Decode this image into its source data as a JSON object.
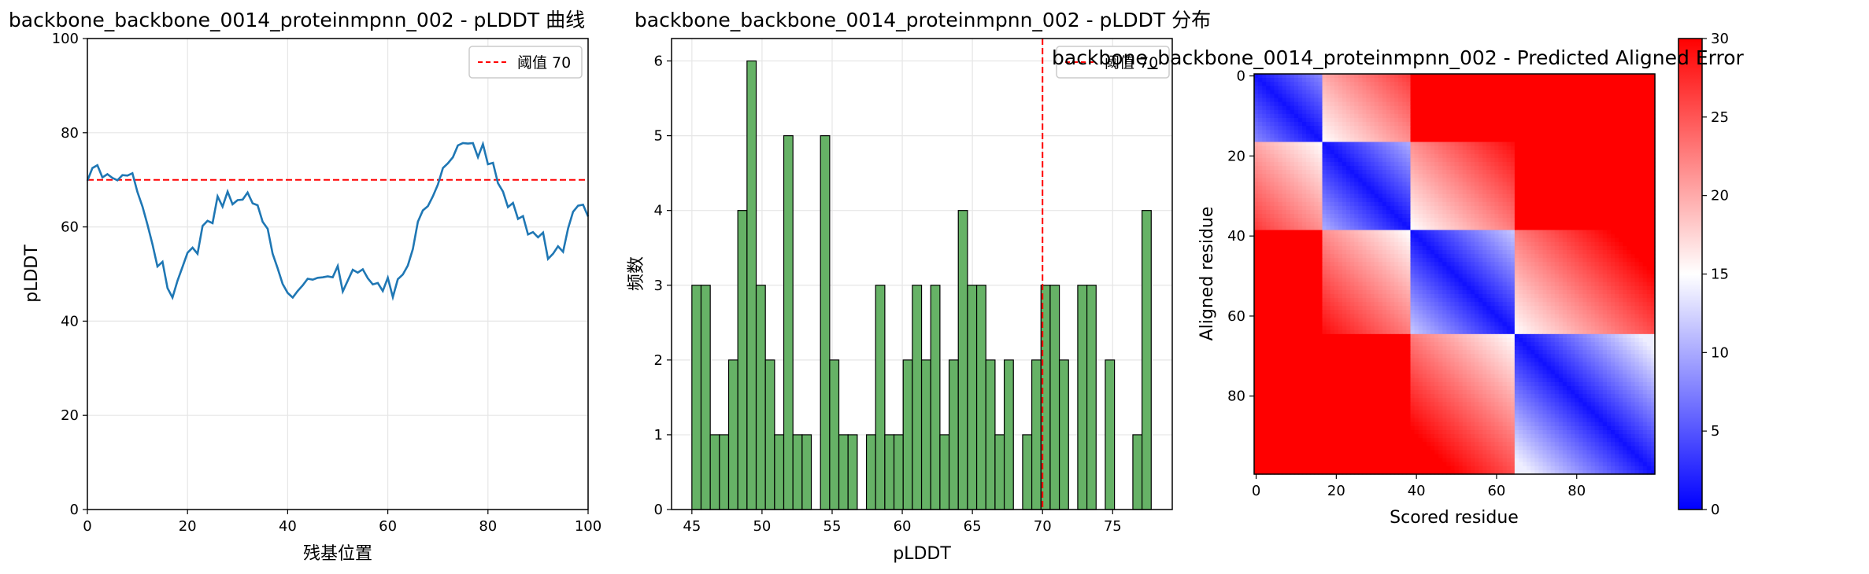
{
  "colors": {
    "line": "#1f77b4",
    "threshold": "#ff0000",
    "bar_fill": "#66b266",
    "bar_edge": "#000000",
    "grid": "#e6e6e6",
    "cmap": [
      "#0000ff",
      "#ffffff",
      "#ff0000"
    ]
  },
  "chart_data": [
    {
      "type": "line",
      "title": "backbone_backbone_0014_proteinmpnn_002 - pLDDT 曲线",
      "xlabel": "残基位置",
      "ylabel": "pLDDT",
      "xlim": [
        0,
        100
      ],
      "ylim": [
        0,
        100
      ],
      "xticks": [
        "0",
        "20",
        "40",
        "60",
        "80",
        "100"
      ],
      "yticks": [
        "0",
        "20",
        "40",
        "60",
        "80",
        "100"
      ],
      "grid": true,
      "legend": {
        "position": "top-right",
        "entries": [
          "阈值 70"
        ]
      },
      "threshold": 70,
      "series": [
        {
          "x": [
            0,
            1,
            2,
            3,
            4,
            5,
            6,
            7,
            8,
            9,
            10,
            11,
            12,
            13,
            14,
            15,
            16,
            17,
            18,
            19,
            20,
            21,
            22,
            23,
            24,
            25,
            26,
            27,
            28,
            29,
            30,
            31,
            32,
            33,
            34,
            35,
            36,
            37,
            38,
            39,
            40,
            41,
            42,
            43,
            44,
            45,
            46,
            47,
            48,
            49,
            50,
            51,
            52,
            53,
            54,
            55,
            56,
            57,
            58,
            59,
            60,
            61,
            62,
            63,
            64,
            65,
            66,
            67,
            68,
            69,
            70,
            71,
            72,
            73,
            74,
            75,
            76,
            77,
            78,
            79,
            80,
            81,
            82,
            83,
            84,
            85,
            86,
            87,
            88,
            89,
            90,
            91,
            92,
            93,
            94,
            95,
            96,
            97,
            98,
            99,
            100
          ],
          "y": [
            69.8,
            72.5,
            73.1,
            70.5,
            71.2,
            70.4,
            69.9,
            71.0,
            70.9,
            71.4,
            67.4,
            64.3,
            60.5,
            56.3,
            51.6,
            52.6,
            47.0,
            45.0,
            48.6,
            51.5,
            54.5,
            55.6,
            54.3,
            60.2,
            61.3,
            60.8,
            66.5,
            64.3,
            67.5,
            64.8,
            65.7,
            65.8,
            67.3,
            65.0,
            64.6,
            61.1,
            59.6,
            54.3,
            51.2,
            47.9,
            46.0,
            45.0,
            46.4,
            47.6,
            49.0,
            48.8,
            49.2,
            49.3,
            49.5,
            49.3,
            51.7,
            46.3,
            48.6,
            50.9,
            50.3,
            51.0,
            49.1,
            47.8,
            48.1,
            46.4,
            49.2,
            45.1,
            48.9,
            49.9,
            51.8,
            55.3,
            61.1,
            63.5,
            64.4,
            66.5,
            69.0,
            72.5,
            73.5,
            74.8,
            77.3,
            77.8,
            77.7,
            77.8,
            74.8,
            77.6,
            73.3,
            73.6,
            69.3,
            67.5,
            64.2,
            65.1,
            61.7,
            62.3,
            58.4,
            58.9,
            57.8,
            58.8,
            53.2,
            54.3,
            55.9,
            54.7,
            59.7,
            63.2,
            64.5,
            64.7,
            62.2
          ]
        }
      ]
    },
    {
      "type": "bar",
      "title": "backbone_backbone_0014_proteinmpnn_002 - pLDDT 分布",
      "xlabel": "pLDDT",
      "ylabel": "频数",
      "xlim": [
        43.55,
        79.25
      ],
      "ylim": [
        0,
        6.3
      ],
      "xticks": [
        "45",
        "50",
        "55",
        "60",
        "65",
        "70",
        "75"
      ],
      "yticks": [
        "0",
        "1",
        "2",
        "3",
        "4",
        "5",
        "6"
      ],
      "grid": true,
      "legend": {
        "position": "top-right",
        "entries": [
          "阈值 70"
        ]
      },
      "threshold": 70,
      "bin_start": 45.0,
      "bin_width": 0.655,
      "values": [
        3,
        3,
        1,
        1,
        2,
        4,
        6,
        3,
        2,
        1,
        5,
        1,
        1,
        0,
        5,
        2,
        1,
        1,
        0,
        1,
        3,
        1,
        1,
        2,
        3,
        2,
        3,
        1,
        2,
        4,
        3,
        3,
        2,
        1,
        2,
        0,
        1,
        2,
        3,
        3,
        2,
        0,
        3,
        3,
        0,
        2,
        0,
        0,
        1,
        4
      ]
    },
    {
      "type": "heatmap",
      "title": "backbone_backbone_0014_proteinmpnn_002 - Predicted Aligned Error",
      "xlabel": "Scored residue",
      "ylabel": "Aligned residue",
      "size": 100,
      "xticks": [
        "0",
        "20",
        "40",
        "60",
        "80"
      ],
      "yticks": [
        "0",
        "20",
        "40",
        "60",
        "80"
      ],
      "colorbar_ticks": [
        "0",
        "5",
        "10",
        "15",
        "20",
        "25",
        "30"
      ],
      "vmin": 0,
      "vmax": 30,
      "domains": [
        [
          0,
          17
        ],
        [
          17,
          39
        ],
        [
          39,
          65
        ],
        [
          65,
          100
        ]
      ]
    }
  ]
}
